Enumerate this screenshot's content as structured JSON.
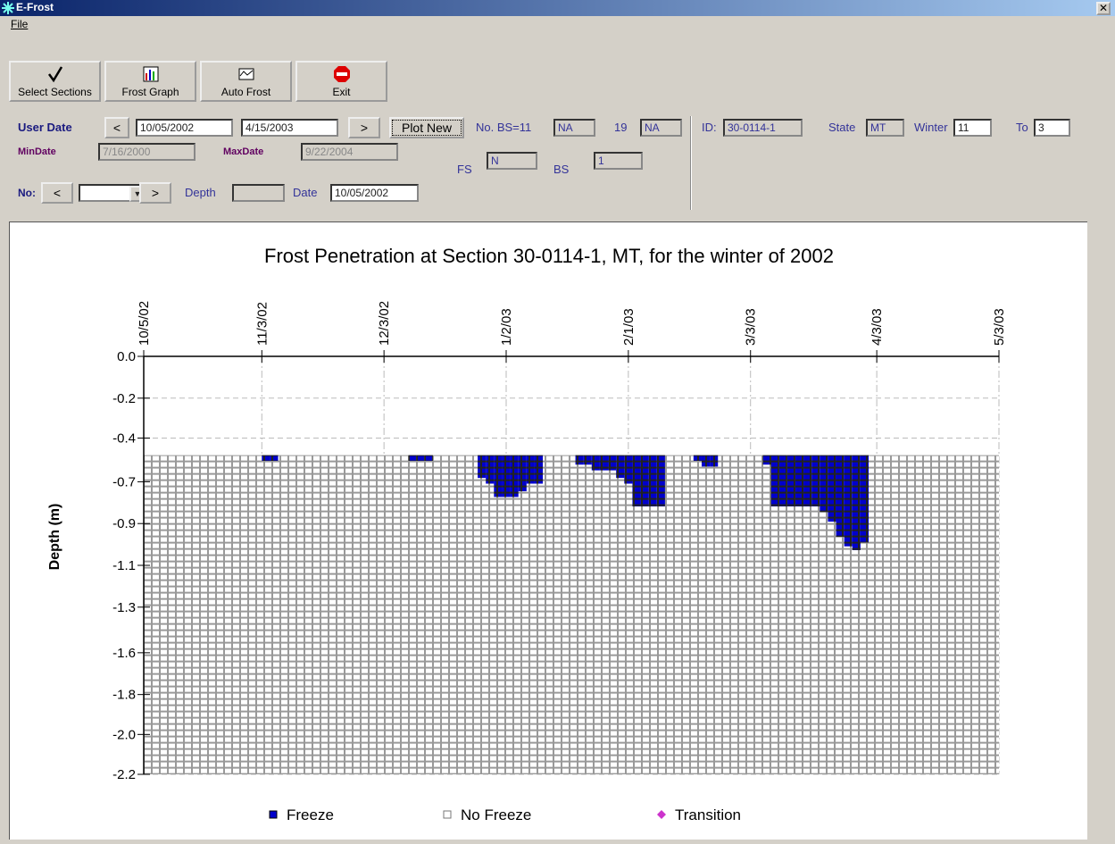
{
  "window": {
    "title": "E-Frost",
    "menu": [
      "File"
    ]
  },
  "toolbar": [
    "Select Sections",
    "Frost Graph",
    "Auto Frost",
    "Exit"
  ],
  "form": {
    "user_date": {
      "label": "User Date",
      "prev": "<",
      "start": "10/05/2002",
      "end": "4/15/2003",
      "next": ">",
      "button": "Plot New"
    },
    "bs": {
      "label": "No. BS=11",
      "value": "NA",
      "count": "19",
      "count_value": "NA"
    },
    "min_date": {
      "label": "MinDate",
      "value": "7/16/2000"
    },
    "max_date": {
      "label": "MaxDate",
      "value": "9/22/2004"
    },
    "fs": {
      "label": "FS",
      "value": "N"
    },
    "bs_field": {
      "label": "BS",
      "value": "1"
    },
    "no": {
      "label": "No:",
      "prev": "<",
      "next": ">"
    },
    "depth": {
      "label": "Depth"
    },
    "date": {
      "label": "Date",
      "value": "10/05/2002"
    },
    "id": {
      "label": "ID:",
      "value": "30-0114-1"
    },
    "state": {
      "label": "State",
      "value": "MT"
    },
    "winter": {
      "label": "Winter",
      "value": "11",
      "to_label": "To",
      "to_value": "3"
    }
  },
  "chart_data": {
    "type": "frost",
    "title": "Frost Penetration at Section 30-0114-1, MT, for the winter of 2002",
    "y_label": "Depth (m)",
    "xlim": [
      "10/5/02",
      "5/3/03"
    ],
    "xticks": [
      "10/5/02",
      "11/3/02",
      "12/3/02",
      "1/2/03",
      "2/1/03",
      "3/3/03",
      "4/3/03",
      "5/3/03"
    ],
    "ylim": [
      -2.2,
      0
    ],
    "yticks": [
      {
        "value": 0,
        "label": "0.0"
      },
      {
        "value": -0.22,
        "label": "-0.2"
      },
      {
        "value": -0.43,
        "label": "-0.4"
      },
      {
        "value": -0.66,
        "label": "-0.7"
      },
      {
        "value": -0.88,
        "label": "-0.9"
      },
      {
        "value": -1.1,
        "label": "-1.1"
      },
      {
        "value": -1.32,
        "label": "-1.3"
      },
      {
        "value": -1.56,
        "label": "-1.6"
      },
      {
        "value": -1.78,
        "label": "-1.8"
      },
      {
        "value": -1.99,
        "label": "-2.0"
      },
      {
        "value": -2.2,
        "label": "-2.2"
      }
    ],
    "grid": true,
    "depth_range": [
      -0.52,
      -2.2
    ],
    "series": [
      {
        "name": "Freeze",
        "color": "#0000cc",
        "marker": "square",
        "x": [
          "11/3/02",
          "11/5/02",
          "12/9/02",
          "12/11/02",
          "12/13/02",
          "12/26/02",
          "12/28/02",
          "12/30/02",
          "1/1/03",
          "1/3/03",
          "1/5/03",
          "1/7/03",
          "1/9/03",
          "1/19/03",
          "1/21/03",
          "1/23/03",
          "1/25/03",
          "1/27/03",
          "1/29/03",
          "1/31/03",
          "2/2/03",
          "2/4/03",
          "2/6/03",
          "2/8/03",
          "2/17/03",
          "2/19/03",
          "2/21/03",
          "3/6/03",
          "3/8/03",
          "3/10/03",
          "3/12/03",
          "3/14/03",
          "3/16/03",
          "3/18/03",
          "3/20/03",
          "3/22/03",
          "3/24/03",
          "3/26/03",
          "3/28/03",
          "3/30/03"
        ],
        "values": [
          -0.55,
          -0.55,
          -0.55,
          -0.55,
          -0.55,
          -0.64,
          -0.67,
          -0.74,
          -0.74,
          -0.74,
          -0.71,
          -0.67,
          -0.67,
          -0.57,
          -0.57,
          -0.6,
          -0.6,
          -0.6,
          -0.64,
          -0.67,
          -0.79,
          -0.79,
          -0.79,
          -0.79,
          -0.55,
          -0.58,
          -0.58,
          -0.57,
          -0.79,
          -0.79,
          -0.79,
          -0.79,
          -0.79,
          -0.79,
          -0.82,
          -0.87,
          -0.95,
          -1.0,
          -1.02,
          -0.98
        ]
      },
      {
        "name": "No Freeze",
        "color": "#ffffff",
        "marker": "square"
      },
      {
        "name": "Transition",
        "color": "#cc33cc",
        "marker": "diamond"
      }
    ]
  }
}
